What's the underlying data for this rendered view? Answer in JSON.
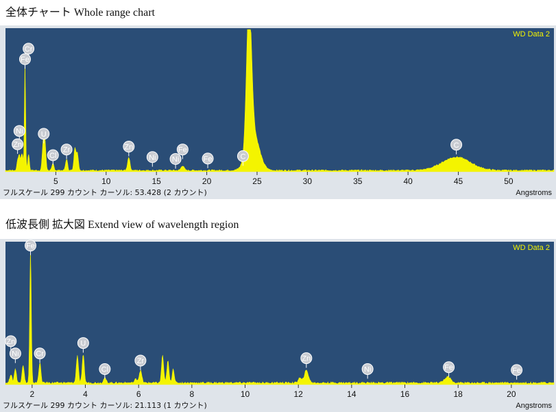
{
  "captions": {
    "top": "全体チャート Whole range chart",
    "bottom": "低波長側 拡大図 Extend view of wavelength region"
  },
  "colors": {
    "plot_bg": "#2a4d76",
    "spectrum": "#f4f400",
    "axis_bg": "#dfe4ea",
    "label_bubble": "#c9ccd2",
    "series_label": "#f4f400"
  },
  "chart_data": [
    {
      "type": "area",
      "series_label": "WD Data 2",
      "xlabel": "Angstroms",
      "xlim": [
        0,
        54.5
      ],
      "ylim": [
        0,
        299
      ],
      "xticks": [
        5,
        10,
        15,
        20,
        25,
        30,
        35,
        40,
        45,
        50
      ],
      "status": "フルスケール 299 カウント カーソル: 53.428  (2 カウント)",
      "peaks": [
        {
          "x": 1.2,
          "y": 18,
          "w": 0.08
        },
        {
          "x": 1.38,
          "y": 30,
          "w": 0.1
        },
        {
          "x": 1.65,
          "y": 35,
          "w": 0.1
        },
        {
          "x": 1.94,
          "y": 230,
          "w": 0.06
        },
        {
          "x": 2.29,
          "y": 35,
          "w": 0.08
        },
        {
          "x": 3.75,
          "y": 55,
          "w": 0.1
        },
        {
          "x": 3.92,
          "y": 55,
          "w": 0.1
        },
        {
          "x": 4.72,
          "y": 14,
          "w": 0.1
        },
        {
          "x": 6.07,
          "y": 24,
          "w": 0.1
        },
        {
          "x": 6.9,
          "y": 48,
          "w": 0.1
        },
        {
          "x": 7.15,
          "y": 35,
          "w": 0.1
        },
        {
          "x": 12.25,
          "y": 28,
          "w": 0.12
        },
        {
          "x": 17.6,
          "y": 10,
          "w": 0.15
        },
        {
          "x": 24.2,
          "y": 299,
          "w": 0.25
        },
        {
          "x": 24.6,
          "y": 80,
          "w": 0.6
        },
        {
          "x": 44.8,
          "y": 28,
          "w": 1.4
        }
      ],
      "baseline": 3,
      "element_labels": [
        {
          "text": "Cr",
          "x": 2.29,
          "y": 250
        },
        {
          "text": "Fe",
          "x": 1.94,
          "y": 228
        },
        {
          "text": "Ni",
          "x": 1.38,
          "y": 77
        },
        {
          "text": "Zn",
          "x": 1.2,
          "y": 49
        },
        {
          "text": "U",
          "x": 3.8,
          "y": 71
        },
        {
          "text": "Cl",
          "x": 4.72,
          "y": 26
        },
        {
          "text": "Zr",
          "x": 6.07,
          "y": 38
        },
        {
          "text": "Zn",
          "x": 12.25,
          "y": 44
        },
        {
          "text": "Ni",
          "x": 14.6,
          "y": 22
        },
        {
          "text": "Ni",
          "x": 16.9,
          "y": 18
        },
        {
          "text": "Fe",
          "x": 17.6,
          "y": 38
        },
        {
          "text": "Fe",
          "x": 20.1,
          "y": 19
        },
        {
          "text": "C",
          "x": 23.6,
          "y": 24
        },
        {
          "text": "C",
          "x": 44.8,
          "y": 48
        }
      ]
    },
    {
      "type": "area",
      "series_label": "WD Data 2",
      "xlabel": "Angstroms",
      "xlim": [
        1.0,
        21.6
      ],
      "ylim": [
        0,
        299
      ],
      "xticks": [
        2,
        4,
        6,
        8,
        10,
        12,
        14,
        16,
        18,
        20
      ],
      "status": "フルスケール 299 カウント カーソル: 21.113  (1 カウント)",
      "peaks": [
        {
          "x": 1.2,
          "y": 18,
          "w": 0.04
        },
        {
          "x": 1.37,
          "y": 30,
          "w": 0.04
        },
        {
          "x": 1.66,
          "y": 38,
          "w": 0.04
        },
        {
          "x": 1.94,
          "y": 280,
          "w": 0.03
        },
        {
          "x": 2.29,
          "y": 42,
          "w": 0.04
        },
        {
          "x": 3.7,
          "y": 58,
          "w": 0.04
        },
        {
          "x": 3.92,
          "y": 58,
          "w": 0.04
        },
        {
          "x": 4.73,
          "y": 10,
          "w": 0.05
        },
        {
          "x": 5.9,
          "y": 8,
          "w": 0.05
        },
        {
          "x": 6.07,
          "y": 26,
          "w": 0.05
        },
        {
          "x": 6.9,
          "y": 58,
          "w": 0.04
        },
        {
          "x": 7.1,
          "y": 46,
          "w": 0.04
        },
        {
          "x": 7.3,
          "y": 30,
          "w": 0.04
        },
        {
          "x": 12.05,
          "y": 10,
          "w": 0.06
        },
        {
          "x": 12.3,
          "y": 26,
          "w": 0.08
        },
        {
          "x": 17.5,
          "y": 6,
          "w": 0.08
        },
        {
          "x": 17.65,
          "y": 12,
          "w": 0.08
        }
      ],
      "baseline": 4,
      "element_labels": [
        {
          "text": "Fe",
          "x": 1.94,
          "y": 285
        },
        {
          "text": "Zn",
          "x": 1.2,
          "y": 83
        },
        {
          "text": "Ni",
          "x": 1.37,
          "y": 57
        },
        {
          "text": "Cr",
          "x": 2.29,
          "y": 57
        },
        {
          "text": "U",
          "x": 3.92,
          "y": 79
        },
        {
          "text": "Cl",
          "x": 4.73,
          "y": 24
        },
        {
          "text": "Zr",
          "x": 6.07,
          "y": 42
        },
        {
          "text": "Zn",
          "x": 12.3,
          "y": 47
        },
        {
          "text": "Ni",
          "x": 14.6,
          "y": 24
        },
        {
          "text": "Fe",
          "x": 17.65,
          "y": 28
        },
        {
          "text": "Fe",
          "x": 20.2,
          "y": 22
        }
      ]
    }
  ]
}
